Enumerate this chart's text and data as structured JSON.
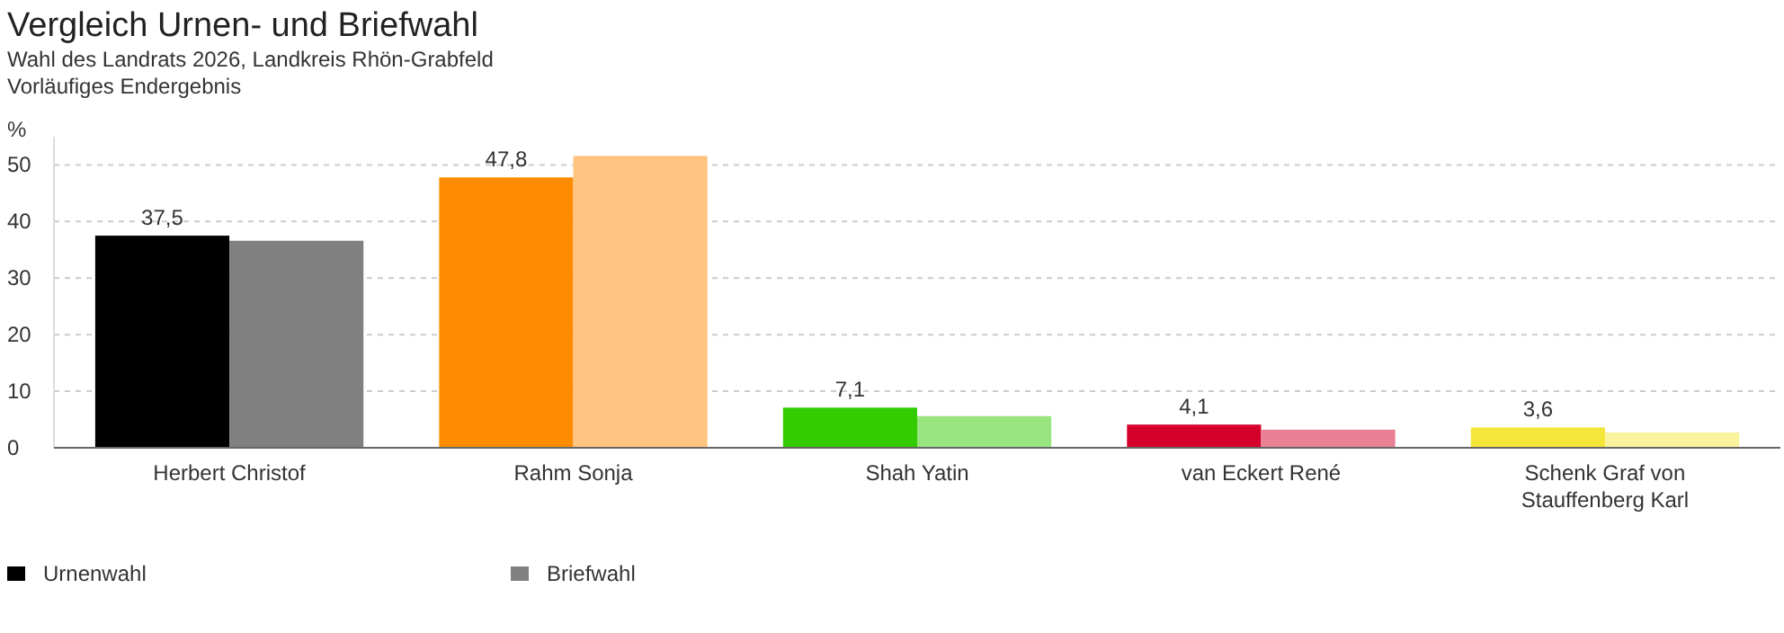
{
  "chart_data": {
    "type": "bar",
    "title": "Vergleich Urnen- und Briefwahl",
    "subtitle": "Wahl des Landrats 2026, Landkreis Rhön-Grabfeld\nVorläufiges Endergebnis",
    "ylabel": "%",
    "categories": [
      "Herbert Christof",
      "Rahm Sonja",
      "Shah Yatin",
      "van Eckert René",
      "Schenk Graf von Stauffenberg Karl"
    ],
    "series": [
      {
        "name": "Urnenwahl",
        "color": "#000000",
        "colors": [
          "#000000",
          "#ff8c00",
          "#33cc00",
          "#d4002a",
          "#f5e63a"
        ],
        "values": [
          37.5,
          47.8,
          7.1,
          4.1,
          3.6
        ],
        "value_labels": [
          "37,5",
          "47,8",
          "7,1",
          "4,1",
          "3,6"
        ]
      },
      {
        "name": "Briefwahl",
        "color": "#808080",
        "colors": [
          "#808080",
          "#ffc47f",
          "#99e57f",
          "#e98094",
          "#faf29c"
        ],
        "values": [
          36.6,
          51.6,
          5.6,
          3.2,
          2.7
        ]
      }
    ],
    "ylim": [
      0,
      55
    ],
    "yticks": [
      0,
      10,
      20,
      30,
      40,
      50
    ],
    "grid": "y",
    "legend": "bottom left"
  }
}
